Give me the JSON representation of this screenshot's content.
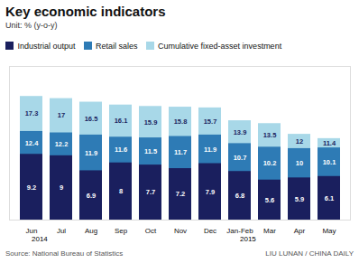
{
  "chart_data": {
    "type": "bar",
    "title": "Key economic indicators",
    "subtitle": "Unit: % (y-o-y)",
    "categories": [
      "Jun",
      "Jul",
      "Aug",
      "Sep",
      "Oct",
      "Nov",
      "Dec",
      "Jan-Feb",
      "Mar",
      "Apr",
      "May"
    ],
    "series": [
      {
        "name": "Industrial output",
        "color": "#1a1f5e",
        "values": [
          9.2,
          9.0,
          6.9,
          8.0,
          7.7,
          7.2,
          7.9,
          6.8,
          5.6,
          5.9,
          6.1
        ]
      },
      {
        "name": "Retail sales",
        "color": "#2e7bb5",
        "values": [
          12.4,
          12.2,
          11.9,
          11.6,
          11.5,
          11.7,
          11.9,
          10.7,
          10.2,
          10.0,
          10.1
        ]
      },
      {
        "name": "Cumulative fixed-asset investment",
        "color": "#a8d8e8",
        "values": [
          17.3,
          17.0,
          16.5,
          16.1,
          15.9,
          15.8,
          15.7,
          13.9,
          13.5,
          12.0,
          11.4
        ]
      }
    ],
    "ylim": [
      0,
      21.5
    ],
    "tick_labels": "x",
    "data_labels": true,
    "stacked": false,
    "grid": false,
    "legend": "top",
    "annotations": [
      {
        "text": "2014",
        "category": "Jun"
      },
      {
        "text": "2015",
        "category": "Jan-Feb"
      }
    ],
    "source": "Source: National Bureau of Statistics",
    "credit": "LIU LUNAN / CHINA DAILY"
  }
}
